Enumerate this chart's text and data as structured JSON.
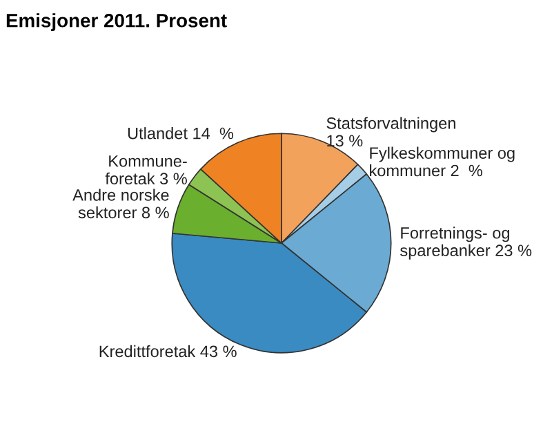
{
  "chart_data": {
    "type": "pie",
    "title": "Emisjoner 2011. Prosent",
    "categories": [
      "Statsforvaltningen\n",
      "Fylkeskommuner og\nkommuner",
      "Forretnings- og\nsparebanker",
      "Kredittforetak",
      "Andre norske\nsektorer",
      "Kommune-\nforetak",
      "Utlandet"
    ],
    "values": [
      13,
      2,
      23,
      43,
      8,
      3,
      14
    ],
    "value_labels": [
      "13 %",
      "2  %",
      "23 %",
      "43 %",
      "8 %",
      "3 %",
      "14  %"
    ],
    "colors": [
      "#f3a25c",
      "#a6cde6",
      "#6aaad3",
      "#3a8bc2",
      "#6aaf2d",
      "#8dc352",
      "#ef8223"
    ],
    "legend": false
  }
}
